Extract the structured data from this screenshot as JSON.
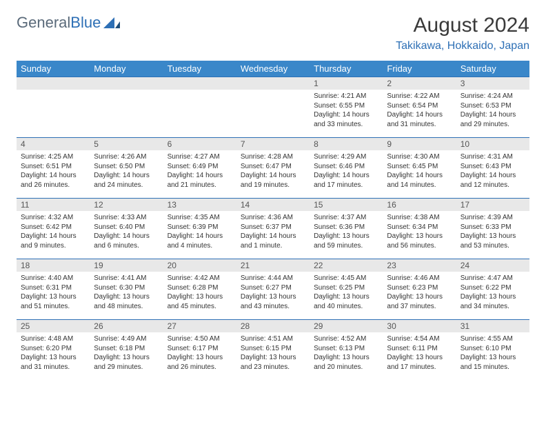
{
  "brand": {
    "general": "General",
    "blue": "Blue"
  },
  "title": "August 2024",
  "location": "Takikawa, Hokkaido, Japan",
  "colors": {
    "header_bg": "#3a87c9",
    "accent": "#2d6fb5",
    "row_stripe": "#e8e8e8",
    "text": "#333333",
    "title_text": "#3a3a3a"
  },
  "day_headers": [
    "Sunday",
    "Monday",
    "Tuesday",
    "Wednesday",
    "Thursday",
    "Friday",
    "Saturday"
  ],
  "weeks": [
    [
      {
        "num": "",
        "lines": []
      },
      {
        "num": "",
        "lines": []
      },
      {
        "num": "",
        "lines": []
      },
      {
        "num": "",
        "lines": []
      },
      {
        "num": "1",
        "lines": [
          "Sunrise: 4:21 AM",
          "Sunset: 6:55 PM",
          "Daylight: 14 hours and 33 minutes."
        ]
      },
      {
        "num": "2",
        "lines": [
          "Sunrise: 4:22 AM",
          "Sunset: 6:54 PM",
          "Daylight: 14 hours and 31 minutes."
        ]
      },
      {
        "num": "3",
        "lines": [
          "Sunrise: 4:24 AM",
          "Sunset: 6:53 PM",
          "Daylight: 14 hours and 29 minutes."
        ]
      }
    ],
    [
      {
        "num": "4",
        "lines": [
          "Sunrise: 4:25 AM",
          "Sunset: 6:51 PM",
          "Daylight: 14 hours and 26 minutes."
        ]
      },
      {
        "num": "5",
        "lines": [
          "Sunrise: 4:26 AM",
          "Sunset: 6:50 PM",
          "Daylight: 14 hours and 24 minutes."
        ]
      },
      {
        "num": "6",
        "lines": [
          "Sunrise: 4:27 AM",
          "Sunset: 6:49 PM",
          "Daylight: 14 hours and 21 minutes."
        ]
      },
      {
        "num": "7",
        "lines": [
          "Sunrise: 4:28 AM",
          "Sunset: 6:47 PM",
          "Daylight: 14 hours and 19 minutes."
        ]
      },
      {
        "num": "8",
        "lines": [
          "Sunrise: 4:29 AM",
          "Sunset: 6:46 PM",
          "Daylight: 14 hours and 17 minutes."
        ]
      },
      {
        "num": "9",
        "lines": [
          "Sunrise: 4:30 AM",
          "Sunset: 6:45 PM",
          "Daylight: 14 hours and 14 minutes."
        ]
      },
      {
        "num": "10",
        "lines": [
          "Sunrise: 4:31 AM",
          "Sunset: 6:43 PM",
          "Daylight: 14 hours and 12 minutes."
        ]
      }
    ],
    [
      {
        "num": "11",
        "lines": [
          "Sunrise: 4:32 AM",
          "Sunset: 6:42 PM",
          "Daylight: 14 hours and 9 minutes."
        ]
      },
      {
        "num": "12",
        "lines": [
          "Sunrise: 4:33 AM",
          "Sunset: 6:40 PM",
          "Daylight: 14 hours and 6 minutes."
        ]
      },
      {
        "num": "13",
        "lines": [
          "Sunrise: 4:35 AM",
          "Sunset: 6:39 PM",
          "Daylight: 14 hours and 4 minutes."
        ]
      },
      {
        "num": "14",
        "lines": [
          "Sunrise: 4:36 AM",
          "Sunset: 6:37 PM",
          "Daylight: 14 hours and 1 minute."
        ]
      },
      {
        "num": "15",
        "lines": [
          "Sunrise: 4:37 AM",
          "Sunset: 6:36 PM",
          "Daylight: 13 hours and 59 minutes."
        ]
      },
      {
        "num": "16",
        "lines": [
          "Sunrise: 4:38 AM",
          "Sunset: 6:34 PM",
          "Daylight: 13 hours and 56 minutes."
        ]
      },
      {
        "num": "17",
        "lines": [
          "Sunrise: 4:39 AM",
          "Sunset: 6:33 PM",
          "Daylight: 13 hours and 53 minutes."
        ]
      }
    ],
    [
      {
        "num": "18",
        "lines": [
          "Sunrise: 4:40 AM",
          "Sunset: 6:31 PM",
          "Daylight: 13 hours and 51 minutes."
        ]
      },
      {
        "num": "19",
        "lines": [
          "Sunrise: 4:41 AM",
          "Sunset: 6:30 PM",
          "Daylight: 13 hours and 48 minutes."
        ]
      },
      {
        "num": "20",
        "lines": [
          "Sunrise: 4:42 AM",
          "Sunset: 6:28 PM",
          "Daylight: 13 hours and 45 minutes."
        ]
      },
      {
        "num": "21",
        "lines": [
          "Sunrise: 4:44 AM",
          "Sunset: 6:27 PM",
          "Daylight: 13 hours and 43 minutes."
        ]
      },
      {
        "num": "22",
        "lines": [
          "Sunrise: 4:45 AM",
          "Sunset: 6:25 PM",
          "Daylight: 13 hours and 40 minutes."
        ]
      },
      {
        "num": "23",
        "lines": [
          "Sunrise: 4:46 AM",
          "Sunset: 6:23 PM",
          "Daylight: 13 hours and 37 minutes."
        ]
      },
      {
        "num": "24",
        "lines": [
          "Sunrise: 4:47 AM",
          "Sunset: 6:22 PM",
          "Daylight: 13 hours and 34 minutes."
        ]
      }
    ],
    [
      {
        "num": "25",
        "lines": [
          "Sunrise: 4:48 AM",
          "Sunset: 6:20 PM",
          "Daylight: 13 hours and 31 minutes."
        ]
      },
      {
        "num": "26",
        "lines": [
          "Sunrise: 4:49 AM",
          "Sunset: 6:18 PM",
          "Daylight: 13 hours and 29 minutes."
        ]
      },
      {
        "num": "27",
        "lines": [
          "Sunrise: 4:50 AM",
          "Sunset: 6:17 PM",
          "Daylight: 13 hours and 26 minutes."
        ]
      },
      {
        "num": "28",
        "lines": [
          "Sunrise: 4:51 AM",
          "Sunset: 6:15 PM",
          "Daylight: 13 hours and 23 minutes."
        ]
      },
      {
        "num": "29",
        "lines": [
          "Sunrise: 4:52 AM",
          "Sunset: 6:13 PM",
          "Daylight: 13 hours and 20 minutes."
        ]
      },
      {
        "num": "30",
        "lines": [
          "Sunrise: 4:54 AM",
          "Sunset: 6:11 PM",
          "Daylight: 13 hours and 17 minutes."
        ]
      },
      {
        "num": "31",
        "lines": [
          "Sunrise: 4:55 AM",
          "Sunset: 6:10 PM",
          "Daylight: 13 hours and 15 minutes."
        ]
      }
    ]
  ]
}
